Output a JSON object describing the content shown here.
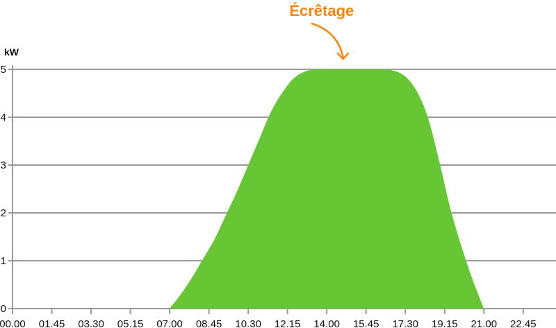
{
  "chart_data": {
    "type": "area",
    "title": "",
    "ylabel": "kW",
    "xlabel": "",
    "ylim": [
      0,
      5
    ],
    "xlim": [
      0,
      24.2
    ],
    "grid": true,
    "yticks": [
      "0",
      "1",
      "2",
      "3",
      "4",
      "5"
    ],
    "xticks": [
      {
        "label": "00.00",
        "hour": 0
      },
      {
        "label": "01.45",
        "hour": 1.75
      },
      {
        "label": "03.30",
        "hour": 3.5
      },
      {
        "label": "05.15",
        "hour": 5.25
      },
      {
        "label": "07.00",
        "hour": 7
      },
      {
        "label": "08.45",
        "hour": 8.75
      },
      {
        "label": "10.30",
        "hour": 10.5
      },
      {
        "label": "12.15",
        "hour": 12.25
      },
      {
        "label": "14.00",
        "hour": 14
      },
      {
        "label": "15.45",
        "hour": 15.75
      },
      {
        "label": "17.30",
        "hour": 17.5
      },
      {
        "label": "19.15",
        "hour": 19.25
      },
      {
        "label": "21.00",
        "hour": 21
      },
      {
        "label": "22.45",
        "hour": 22.75
      }
    ],
    "x": [
      7.0,
      7.5,
      8.0,
      8.5,
      9.0,
      9.5,
      10.0,
      10.5,
      11.0,
      11.5,
      12.0,
      12.5,
      13.0,
      13.5,
      14.0,
      15.0,
      16.0,
      16.5,
      17.0,
      17.5,
      18.0,
      18.5,
      19.0,
      19.5,
      20.0,
      20.5,
      21.0
    ],
    "values": [
      0,
      0.3,
      0.65,
      1.05,
      1.45,
      1.95,
      2.45,
      3.0,
      3.55,
      4.1,
      4.5,
      4.8,
      4.95,
      5,
      5,
      5,
      5,
      5,
      4.97,
      4.85,
      4.55,
      4.0,
      3.1,
      2.1,
      1.3,
      0.6,
      0
    ],
    "annotation": {
      "text": "Écrêtage",
      "hour": 14.7,
      "value": 5
    },
    "colors": {
      "fill": "#66c633",
      "annotation": "#f7860f",
      "grid": "#9a9a9a"
    }
  }
}
